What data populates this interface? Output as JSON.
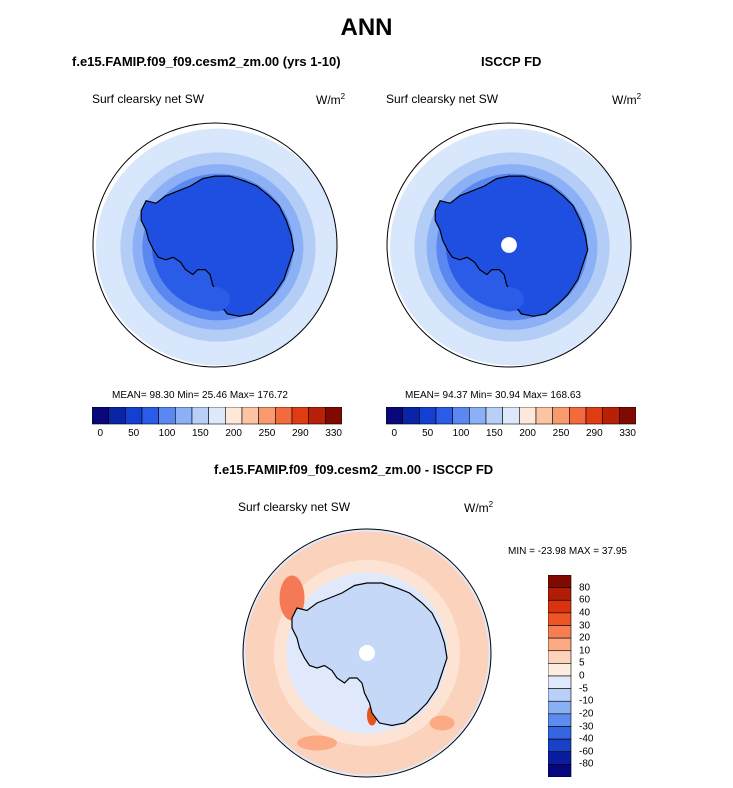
{
  "title": "ANN",
  "colors": {
    "land": "#1e4fe0",
    "ocean_bg": "#d8e7fc",
    "outline": "#000000",
    "diff_bg": "#dfe9fb"
  },
  "panels": [
    {
      "title": "f.e15.FAMIP.f09_f09.cesm2_zm.00 (yrs 1-10)",
      "variable": "Surf clearsky net SW",
      "units": "W/m",
      "units_exp": "2",
      "stats": "MEAN=  98.30  Min=  25.46  Max= 176.72",
      "missing_pole": false
    },
    {
      "title": "ISCCP FD",
      "variable": "Surf clearsky net SW",
      "units": "W/m",
      "units_exp": "2",
      "stats": "MEAN=  94.37  Min=  30.94  Max= 168.63",
      "missing_pole": true
    }
  ],
  "diff": {
    "title": "f.e15.FAMIP.f09_f09.cesm2_zm.00 - ISCCP FD",
    "variable": "Surf clearsky net SW",
    "units": "W/m",
    "units_exp": "2",
    "stats": "MIN = -23.98 MAX =  37.95"
  },
  "chart_data": [
    {
      "type": "heatmap",
      "projection": "south polar stereographic",
      "title": "f.e15.FAMIP.f09_f09.cesm2_zm.00 (yrs 1-10)",
      "variable": "Surf clearsky net SW",
      "units": "W/m2",
      "mean": 98.3,
      "min": 25.46,
      "max": 176.72,
      "colorbar": {
        "levels": [
          0,
          25,
          50,
          75,
          100,
          125,
          150,
          175,
          200,
          225,
          250,
          270,
          290,
          310,
          330
        ],
        "tick_labels": [
          "0",
          "50",
          "100",
          "150",
          "200",
          "250",
          "290",
          "330"
        ],
        "colors": [
          "#08087a",
          "#0a24a8",
          "#1440d2",
          "#2a5ce8",
          "#5a88f0",
          "#8cb0f5",
          "#b8d0f8",
          "#dce9fb",
          "#fde8da",
          "#fcc4a2",
          "#f99a6e",
          "#f26a3e",
          "#e03c14",
          "#b82008",
          "#800a02"
        ]
      }
    },
    {
      "type": "heatmap",
      "projection": "south polar stereographic",
      "title": "ISCCP FD",
      "variable": "Surf clearsky net SW",
      "units": "W/m2",
      "mean": 94.37,
      "min": 30.94,
      "max": 168.63,
      "colorbar": {
        "levels": [
          0,
          25,
          50,
          75,
          100,
          125,
          150,
          175,
          200,
          225,
          250,
          270,
          290,
          310,
          330
        ],
        "tick_labels": [
          "0",
          "50",
          "100",
          "150",
          "200",
          "250",
          "290",
          "330"
        ],
        "colors": [
          "#08087a",
          "#0a24a8",
          "#1440d2",
          "#2a5ce8",
          "#5a88f0",
          "#8cb0f5",
          "#b8d0f8",
          "#dce9fb",
          "#fde8da",
          "#fcc4a2",
          "#f99a6e",
          "#f26a3e",
          "#e03c14",
          "#b82008",
          "#800a02"
        ]
      }
    },
    {
      "type": "heatmap",
      "projection": "south polar stereographic",
      "title": "f.e15.FAMIP.f09_f09.cesm2_zm.00 - ISCCP FD",
      "variable": "Surf clearsky net SW",
      "units": "W/m2",
      "min": -23.98,
      "max": 37.95,
      "colorbar": {
        "orientation": "vertical",
        "levels": [
          80,
          60,
          40,
          30,
          20,
          10,
          5,
          0,
          -5,
          -10,
          -20,
          -30,
          -40,
          -60,
          -80
        ],
        "tick_labels": [
          "80",
          "60",
          "40",
          "30",
          "20",
          "10",
          "5",
          "0",
          "-5",
          "-10",
          "-20",
          "-30",
          "-40",
          "-60",
          "-80"
        ],
        "colors": [
          "#800a02",
          "#b21c06",
          "#d8320e",
          "#ee5424",
          "#f77e52",
          "#fbaa84",
          "#fdd2b8",
          "#fdece0",
          "#dfe9fb",
          "#b8cff8",
          "#8ab0f4",
          "#5e8cee",
          "#3466e4",
          "#1840c8",
          "#0a1ca0",
          "#060680"
        ]
      }
    }
  ]
}
